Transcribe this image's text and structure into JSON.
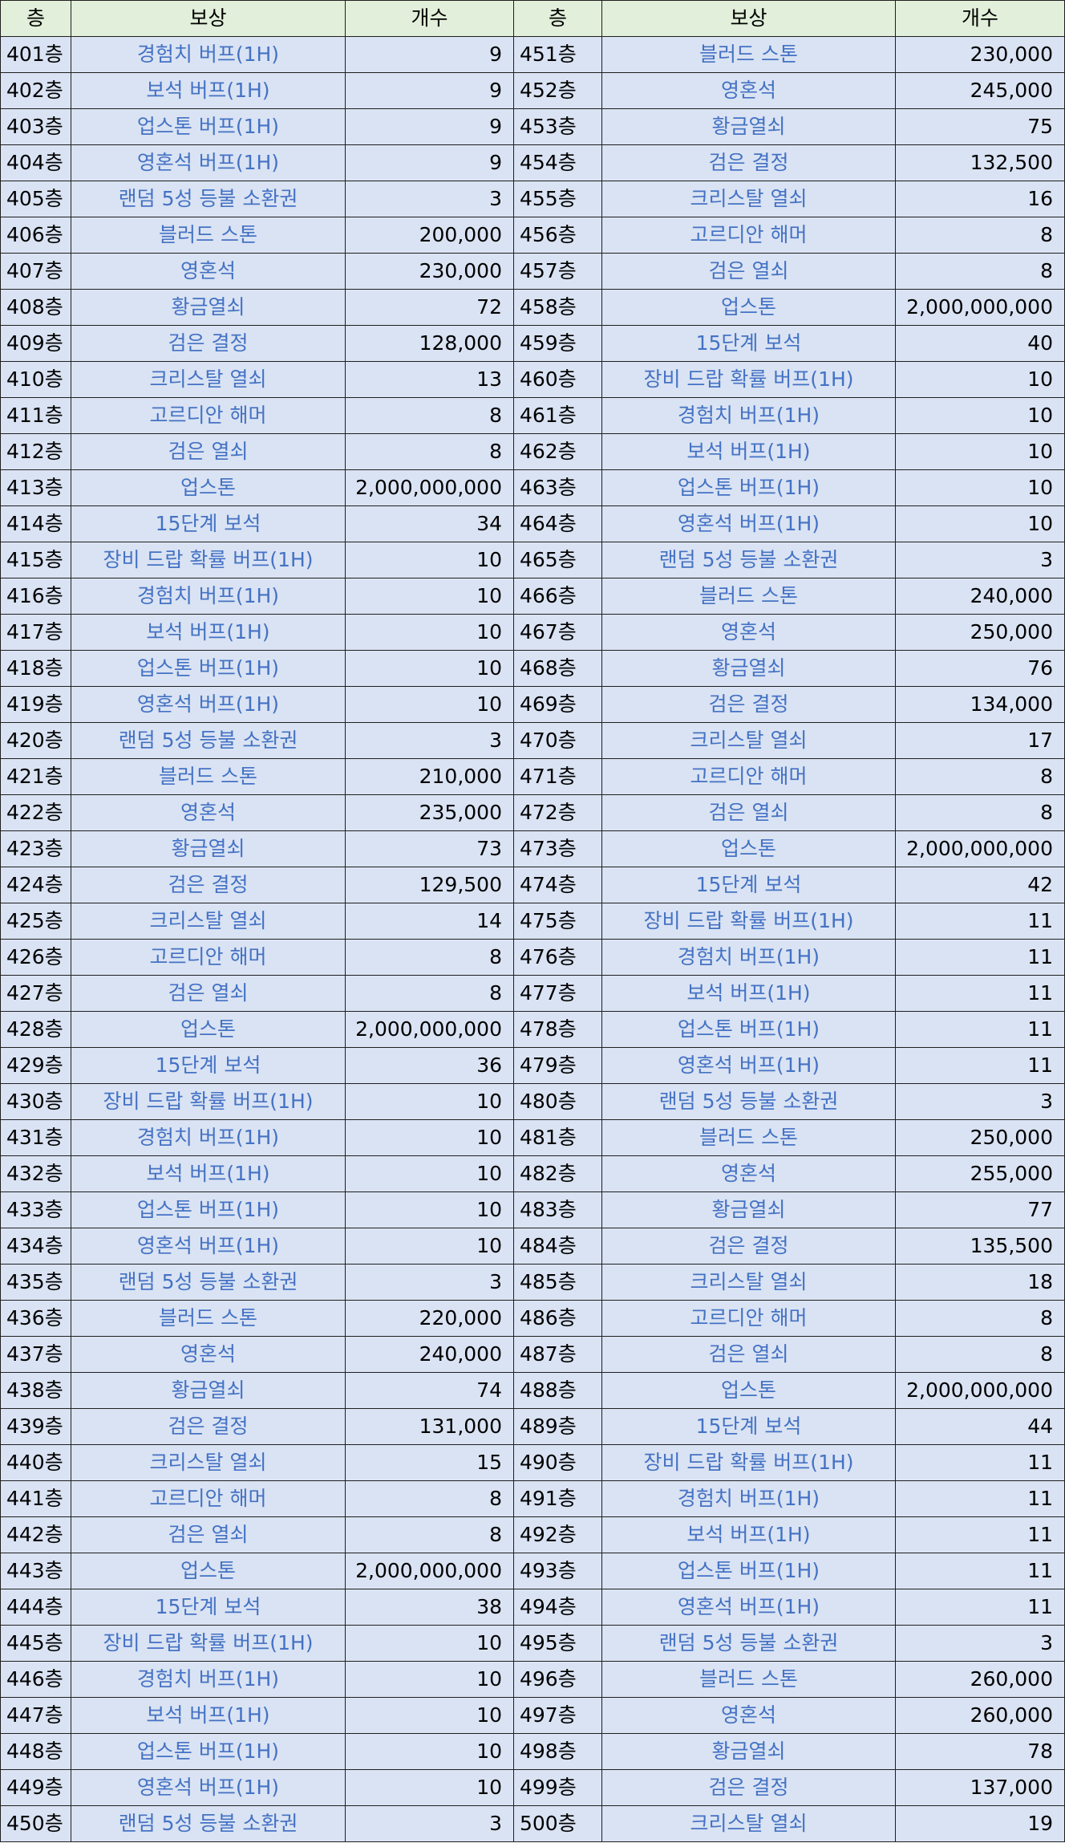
{
  "headers": [
    "층",
    "보상",
    "개수",
    "층",
    "보상",
    "개수"
  ],
  "rows": [
    [
      "401층",
      "경험치 버프(1H)",
      "9",
      "451층",
      "블러드 스톤",
      "230,000"
    ],
    [
      "402층",
      "보석 버프(1H)",
      "9",
      "452층",
      "영혼석",
      "245,000"
    ],
    [
      "403층",
      "업스톤 버프(1H)",
      "9",
      "453층",
      "황금열쇠",
      "75"
    ],
    [
      "404층",
      "영혼석 버프(1H)",
      "9",
      "454층",
      "검은 결정",
      "132,500"
    ],
    [
      "405층",
      "랜덤 5성 등불 소환권",
      "3",
      "455층",
      "크리스탈 열쇠",
      "16"
    ],
    [
      "406층",
      "블러드 스톤",
      "200,000",
      "456층",
      "고르디안 해머",
      "8"
    ],
    [
      "407층",
      "영혼석",
      "230,000",
      "457층",
      "검은 열쇠",
      "8"
    ],
    [
      "408층",
      "황금열쇠",
      "72",
      "458층",
      "업스톤",
      "2,000,000,000"
    ],
    [
      "409층",
      "검은 결정",
      "128,000",
      "459층",
      "15단계 보석",
      "40"
    ],
    [
      "410층",
      "크리스탈 열쇠",
      "13",
      "460층",
      "장비 드랍 확률 버프(1H)",
      "10"
    ],
    [
      "411층",
      "고르디안 해머",
      "8",
      "461층",
      "경험치 버프(1H)",
      "10"
    ],
    [
      "412층",
      "검은 열쇠",
      "8",
      "462층",
      "보석 버프(1H)",
      "10"
    ],
    [
      "413층",
      "업스톤",
      "2,000,000,000",
      "463층",
      "업스톤 버프(1H)",
      "10"
    ],
    [
      "414층",
      "15단계 보석",
      "34",
      "464층",
      "영혼석 버프(1H)",
      "10"
    ],
    [
      "415층",
      "장비 드랍 확률 버프(1H)",
      "10",
      "465층",
      "랜덤 5성 등불 소환권",
      "3"
    ],
    [
      "416층",
      "경험치 버프(1H)",
      "10",
      "466층",
      "블러드 스톤",
      "240,000"
    ],
    [
      "417층",
      "보석 버프(1H)",
      "10",
      "467층",
      "영혼석",
      "250,000"
    ],
    [
      "418층",
      "업스톤 버프(1H)",
      "10",
      "468층",
      "황금열쇠",
      "76"
    ],
    [
      "419층",
      "영혼석 버프(1H)",
      "10",
      "469층",
      "검은 결정",
      "134,000"
    ],
    [
      "420층",
      "랜덤 5성 등불 소환권",
      "3",
      "470층",
      "크리스탈 열쇠",
      "17"
    ],
    [
      "421층",
      "블러드 스톤",
      "210,000",
      "471층",
      "고르디안 해머",
      "8"
    ],
    [
      "422층",
      "영혼석",
      "235,000",
      "472층",
      "검은 열쇠",
      "8"
    ],
    [
      "423층",
      "황금열쇠",
      "73",
      "473층",
      "업스톤",
      "2,000,000,000"
    ],
    [
      "424층",
      "검은 결정",
      "129,500",
      "474층",
      "15단계 보석",
      "42"
    ],
    [
      "425층",
      "크리스탈 열쇠",
      "14",
      "475층",
      "장비 드랍 확률 버프(1H)",
      "11"
    ],
    [
      "426층",
      "고르디안 해머",
      "8",
      "476층",
      "경험치 버프(1H)",
      "11"
    ],
    [
      "427층",
      "검은 열쇠",
      "8",
      "477층",
      "보석 버프(1H)",
      "11"
    ],
    [
      "428층",
      "업스톤",
      "2,000,000,000",
      "478층",
      "업스톤 버프(1H)",
      "11"
    ],
    [
      "429층",
      "15단계 보석",
      "36",
      "479층",
      "영혼석 버프(1H)",
      "11"
    ],
    [
      "430층",
      "장비 드랍 확률 버프(1H)",
      "10",
      "480층",
      "랜덤 5성 등불 소환권",
      "3"
    ],
    [
      "431층",
      "경험치 버프(1H)",
      "10",
      "481층",
      "블러드 스톤",
      "250,000"
    ],
    [
      "432층",
      "보석 버프(1H)",
      "10",
      "482층",
      "영혼석",
      "255,000"
    ],
    [
      "433층",
      "업스톤 버프(1H)",
      "10",
      "483층",
      "황금열쇠",
      "77"
    ],
    [
      "434층",
      "영혼석 버프(1H)",
      "10",
      "484층",
      "검은 결정",
      "135,500"
    ],
    [
      "435층",
      "랜덤 5성 등불 소환권",
      "3",
      "485층",
      "크리스탈 열쇠",
      "18"
    ],
    [
      "436층",
      "블러드 스톤",
      "220,000",
      "486층",
      "고르디안 해머",
      "8"
    ],
    [
      "437층",
      "영혼석",
      "240,000",
      "487층",
      "검은 열쇠",
      "8"
    ],
    [
      "438층",
      "황금열쇠",
      "74",
      "488층",
      "업스톤",
      "2,000,000,000"
    ],
    [
      "439층",
      "검은 결정",
      "131,000",
      "489층",
      "15단계 보석",
      "44"
    ],
    [
      "440층",
      "크리스탈 열쇠",
      "15",
      "490층",
      "장비 드랍 확률 버프(1H)",
      "11"
    ],
    [
      "441층",
      "고르디안 해머",
      "8",
      "491층",
      "경험치 버프(1H)",
      "11"
    ],
    [
      "442층",
      "검은 열쇠",
      "8",
      "492층",
      "보석 버프(1H)",
      "11"
    ],
    [
      "443층",
      "업스톤",
      "2,000,000,000",
      "493층",
      "업스톤 버프(1H)",
      "11"
    ],
    [
      "444층",
      "15단계 보석",
      "38",
      "494층",
      "영혼석 버프(1H)",
      "11"
    ],
    [
      "445층",
      "장비 드랍 확률 버프(1H)",
      "10",
      "495층",
      "랜덤 5성 등불 소환권",
      "3"
    ],
    [
      "446층",
      "경험치 버프(1H)",
      "10",
      "496층",
      "블러드 스톤",
      "260,000"
    ],
    [
      "447층",
      "보석 버프(1H)",
      "10",
      "497층",
      "영혼석",
      "260,000"
    ],
    [
      "448층",
      "업스톤 버프(1H)",
      "10",
      "498층",
      "황금열쇠",
      "78"
    ],
    [
      "449층",
      "영혼석 버프(1H)",
      "10",
      "499층",
      "검은 결정",
      "137,000"
    ],
    [
      "450층",
      "랜덤 5성 등불 소환권",
      "3",
      "500층",
      "크리스탈 열쇠",
      "19"
    ]
  ],
  "colors": {
    "header_bg": "#e2efda",
    "row_bg": "#dae3f3",
    "reward_text": "#4472c4",
    "border": "#1f1f1f"
  }
}
